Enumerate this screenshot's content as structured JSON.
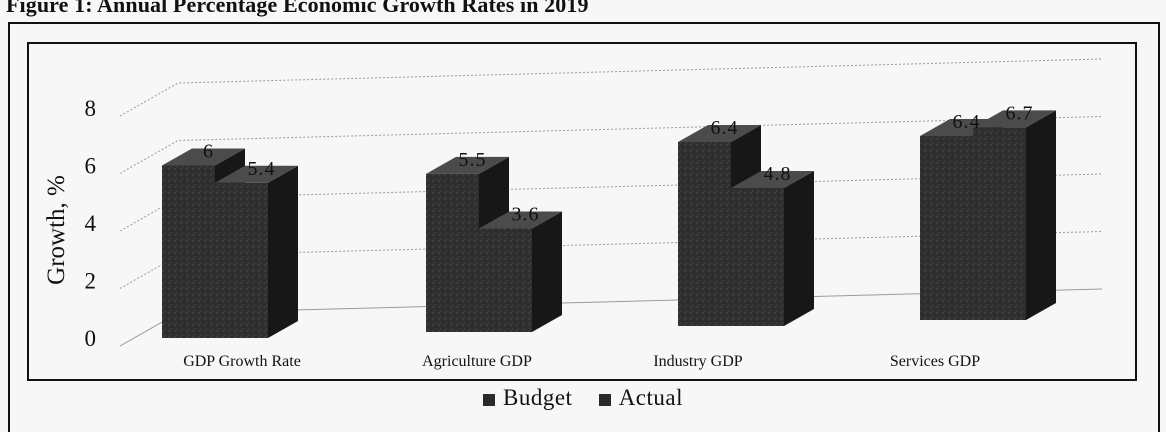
{
  "figure": {
    "title": "Figure 1: Annual Percentage Economic Growth Rates in 2019"
  },
  "chart_data": {
    "type": "bar",
    "title": "",
    "xlabel": "",
    "ylabel": "Growth, %",
    "ylim": [
      0,
      8
    ],
    "yticks": [
      0,
      2,
      4,
      6,
      8
    ],
    "categories": [
      "GDP Growth Rate",
      "Agriculture GDP",
      "Industry GDP",
      "Services GDP"
    ],
    "series": [
      {
        "name": "Budget",
        "values": [
          6,
          5.5,
          6.4,
          6.4
        ],
        "labels": [
          "6",
          "5.5",
          "6.4",
          "6.4"
        ]
      },
      {
        "name": "Actual",
        "values": [
          5.4,
          3.6,
          4.8,
          6.7
        ],
        "labels": [
          "5.4",
          "3.6",
          "4.8",
          "6.7"
        ]
      }
    ],
    "legend_position": "bottom",
    "grid": true,
    "style": "3d-column",
    "colors": {
      "bar_front": "#2f2f2f",
      "bar_side": "#171717",
      "bar_top": "#4b4b4b",
      "grid": "#9a9a9a"
    }
  }
}
